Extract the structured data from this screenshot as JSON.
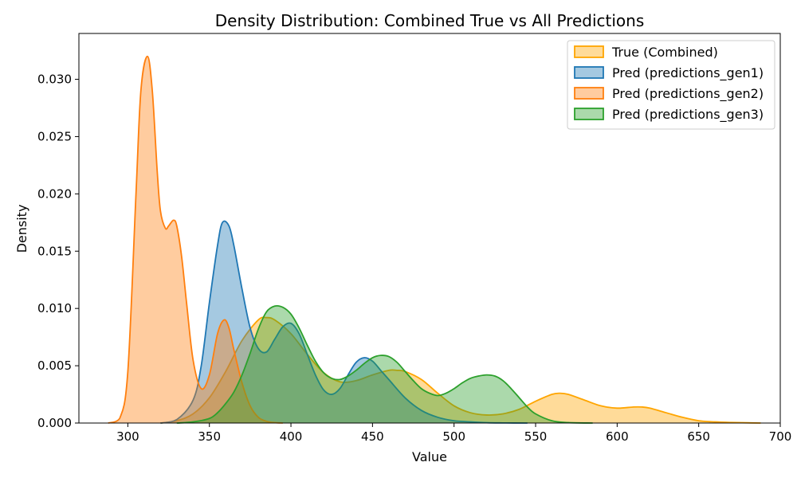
{
  "chart_data": {
    "type": "area",
    "title": "Density Distribution: Combined True vs All Predictions",
    "xlabel": "Value",
    "ylabel": "Density",
    "xlim": [
      270,
      700
    ],
    "ylim": [
      0,
      0.034
    ],
    "xticks": [
      300,
      350,
      400,
      450,
      500,
      550,
      600,
      650,
      700
    ],
    "xtick_labels": [
      "300",
      "350",
      "400",
      "450",
      "500",
      "550",
      "600",
      "650",
      "700"
    ],
    "yticks": [
      0,
      0.005,
      0.01,
      0.015,
      0.02,
      0.025,
      0.03
    ],
    "ytick_labels": [
      "0.000",
      "0.005",
      "0.010",
      "0.015",
      "0.020",
      "0.025",
      "0.030"
    ],
    "grid": false,
    "legend_position": "top-right",
    "series": [
      {
        "name": "True (Combined)",
        "color": "#ffa500",
        "x": [
          320,
          330,
          340,
          350,
          360,
          370,
          380,
          385,
          390,
          400,
          410,
          420,
          430,
          440,
          450,
          460,
          465,
          470,
          480,
          490,
          500,
          510,
          520,
          530,
          540,
          550,
          560,
          565,
          570,
          580,
          590,
          600,
          610,
          615,
          620,
          630,
          640,
          650,
          660,
          670,
          680,
          688
        ],
        "y": [
          0,
          0.0002,
          0.0008,
          0.0022,
          0.0045,
          0.0072,
          0.009,
          0.0092,
          0.009,
          0.0078,
          0.006,
          0.0044,
          0.0036,
          0.0037,
          0.0042,
          0.0046,
          0.0046,
          0.0045,
          0.0038,
          0.0026,
          0.0015,
          0.0009,
          0.0007,
          0.0008,
          0.0012,
          0.0019,
          0.0025,
          0.0026,
          0.0025,
          0.002,
          0.0015,
          0.0013,
          0.0014,
          0.0014,
          0.0013,
          0.0009,
          0.0005,
          0.0002,
          0.0001,
          5e-05,
          2e-05,
          0
        ]
      },
      {
        "name": "Pred (predictions_gen1)",
        "color": "#1f77b4",
        "x": [
          320,
          330,
          340,
          345,
          350,
          355,
          358,
          362,
          365,
          370,
          375,
          380,
          385,
          390,
          395,
          400,
          405,
          410,
          415,
          420,
          425,
          430,
          435,
          440,
          445,
          450,
          455,
          460,
          470,
          480,
          490,
          500,
          510,
          520,
          530,
          545
        ],
        "y": [
          0,
          0.0003,
          0.002,
          0.005,
          0.0105,
          0.0155,
          0.0175,
          0.0172,
          0.0155,
          0.0117,
          0.0083,
          0.0065,
          0.0062,
          0.0073,
          0.0084,
          0.0087,
          0.0078,
          0.006,
          0.0042,
          0.0029,
          0.0025,
          0.003,
          0.0042,
          0.0053,
          0.0057,
          0.0054,
          0.0046,
          0.0038,
          0.0022,
          0.0011,
          0.0005,
          0.0002,
          0.0001,
          3e-05,
          1e-05,
          0
        ]
      },
      {
        "name": "Pred (predictions_gen2)",
        "color": "#ff7f0e",
        "x": [
          288,
          295,
          300,
          305,
          308,
          312,
          315,
          318,
          320,
          323,
          325,
          328,
          330,
          333,
          336,
          340,
          345,
          350,
          355,
          359,
          362,
          365,
          370,
          375,
          380,
          385,
          390,
          395
        ],
        "y": [
          0,
          0.0004,
          0.0045,
          0.02,
          0.029,
          0.032,
          0.029,
          0.022,
          0.0185,
          0.017,
          0.0172,
          0.0177,
          0.0172,
          0.0145,
          0.0105,
          0.0055,
          0.003,
          0.0042,
          0.0078,
          0.009,
          0.0083,
          0.0064,
          0.0035,
          0.0015,
          0.0005,
          0.00015,
          4e-05,
          0
        ]
      },
      {
        "name": "Pred (predictions_gen3)",
        "color": "#2ca02c",
        "x": [
          330,
          340,
          350,
          355,
          360,
          365,
          370,
          375,
          380,
          385,
          390,
          395,
          400,
          405,
          410,
          415,
          420,
          425,
          430,
          435,
          440,
          445,
          450,
          455,
          460,
          465,
          470,
          475,
          480,
          485,
          490,
          495,
          500,
          505,
          510,
          515,
          520,
          525,
          530,
          535,
          540,
          545,
          550,
          560,
          570,
          585
        ],
        "y": [
          0,
          0.0001,
          0.0004,
          0.0009,
          0.0017,
          0.0027,
          0.0042,
          0.0061,
          0.0082,
          0.0097,
          0.0102,
          0.0101,
          0.0095,
          0.0083,
          0.0068,
          0.0054,
          0.0044,
          0.0039,
          0.0038,
          0.0041,
          0.0046,
          0.0052,
          0.0057,
          0.0059,
          0.0058,
          0.0053,
          0.0045,
          0.0037,
          0.003,
          0.0026,
          0.0024,
          0.0026,
          0.003,
          0.0035,
          0.0039,
          0.0041,
          0.0042,
          0.0041,
          0.0037,
          0.003,
          0.0022,
          0.0014,
          0.0008,
          0.0002,
          4e-05,
          0
        ]
      }
    ]
  }
}
